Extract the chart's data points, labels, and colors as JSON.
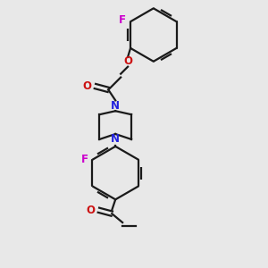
{
  "bg_color": "#e8e8e8",
  "bond_color": "#1a1a1a",
  "N_color": "#2222dd",
  "O_color": "#cc1111",
  "F_color": "#cc00cc",
  "lw": 1.6,
  "dbo": 0.018,
  "fs": 8.5,
  "xlim": [
    0,
    3
  ],
  "ylim": [
    0,
    3
  ]
}
